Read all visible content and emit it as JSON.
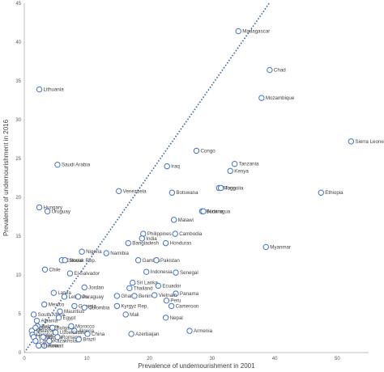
{
  "chart_data": {
    "type": "scatter",
    "xlabel": "Prevalence of undernourishment  in 2001",
    "ylabel": "Prevalence of undernourishment in 2016",
    "xlim": [
      0,
      55
    ],
    "ylim": [
      0,
      45
    ],
    "xticks": [
      0,
      10,
      20,
      30,
      40,
      50
    ],
    "yticks": [
      0,
      5,
      10,
      15,
      20,
      25,
      30,
      35,
      40,
      45
    ],
    "grid": false,
    "reference_line": {
      "style": "dotted",
      "color": "#2e5ba8",
      "slope": 1.15,
      "intercept": 0
    },
    "marker_color": "#4472c4",
    "points": [
      {
        "label": "Madagascar",
        "x": 34.2,
        "y": 41.4
      },
      {
        "label": "Chad",
        "x": 39.2,
        "y": 36.4
      },
      {
        "label": "Lithuania",
        "x": 2.4,
        "y": 33.9
      },
      {
        "label": "Mozambique",
        "x": 37.9,
        "y": 32.8
      },
      {
        "label": "Sierra Leone",
        "x": 52.2,
        "y": 27.2
      },
      {
        "label": "Congo",
        "x": 27.5,
        "y": 26.0
      },
      {
        "label": "Tanzania",
        "x": 33.6,
        "y": 24.3
      },
      {
        "label": "Saudi Arabia",
        "x": 5.3,
        "y": 24.2
      },
      {
        "label": "Iraq",
        "x": 22.8,
        "y": 24.0
      },
      {
        "label": "Kenya",
        "x": 32.9,
        "y": 23.4
      },
      {
        "label": "Mongolia",
        "x": 31.1,
        "y": 21.2
      },
      {
        "label": "Togo",
        "x": 31.4,
        "y": 21.2
      },
      {
        "label": "Venezuela",
        "x": 15.1,
        "y": 20.8
      },
      {
        "label": "Botswana",
        "x": 23.6,
        "y": 20.6
      },
      {
        "label": "Ethiopia",
        "x": 47.4,
        "y": 20.6
      },
      {
        "label": "Hungary",
        "x": 2.4,
        "y": 18.7
      },
      {
        "label": "Burkina",
        "x": 28.4,
        "y": 18.2
      },
      {
        "label": "Nicaragua",
        "x": 28.6,
        "y": 18.2
      },
      {
        "label": "Uruguay",
        "x": 3.7,
        "y": 18.2
      },
      {
        "label": "Malawi",
        "x": 23.9,
        "y": 17.1
      },
      {
        "label": "Philippines",
        "x": 19.0,
        "y": 15.3
      },
      {
        "label": "Cambodia",
        "x": 24.1,
        "y": 15.3
      },
      {
        "label": "India",
        "x": 18.8,
        "y": 14.7
      },
      {
        "label": "Bangladesh",
        "x": 16.6,
        "y": 14.1
      },
      {
        "label": "Honduras",
        "x": 22.6,
        "y": 14.1
      },
      {
        "label": "Myanmar",
        "x": 38.6,
        "y": 13.6
      },
      {
        "label": "Nigeria",
        "x": 9.2,
        "y": 13.0
      },
      {
        "label": "Namibia",
        "x": 13.1,
        "y": 12.8
      },
      {
        "label": "Estonia",
        "x": 6.0,
        "y": 11.9
      },
      {
        "label": "Slovak Rep.",
        "x": 6.5,
        "y": 11.9
      },
      {
        "label": "Gambia",
        "x": 18.2,
        "y": 11.9
      },
      {
        "label": "Pakistan",
        "x": 21.1,
        "y": 11.9
      },
      {
        "label": "Chile",
        "x": 3.3,
        "y": 10.7
      },
      {
        "label": "Indonesia",
        "x": 19.5,
        "y": 10.4
      },
      {
        "label": "El Salvador",
        "x": 7.3,
        "y": 10.2
      },
      {
        "label": "Senegal",
        "x": 24.2,
        "y": 10.3
      },
      {
        "label": "Sri Lanka",
        "x": 17.3,
        "y": 9.0
      },
      {
        "label": "Ecuador",
        "x": 21.4,
        "y": 8.6
      },
      {
        "label": "Jordan",
        "x": 9.6,
        "y": 8.4
      },
      {
        "label": "Thailand",
        "x": 16.8,
        "y": 8.3
      },
      {
        "label": "Latvia",
        "x": 4.7,
        "y": 7.7
      },
      {
        "label": "Ghana",
        "x": 14.8,
        "y": 7.3
      },
      {
        "label": "Benin",
        "x": 17.6,
        "y": 7.3
      },
      {
        "label": "Panama",
        "x": 24.2,
        "y": 7.6
      },
      {
        "label": "Lebanon",
        "x": 6.4,
        "y": 7.2
      },
      {
        "label": "Paraguay",
        "x": 8.6,
        "y": 7.2
      },
      {
        "label": "Vietnam",
        "x": 20.8,
        "y": 7.4
      },
      {
        "label": "Peru",
        "x": 22.7,
        "y": 6.7
      },
      {
        "label": "Mexico",
        "x": 3.2,
        "y": 6.2
      },
      {
        "label": "Georgia",
        "x": 8.0,
        "y": 6.0
      },
      {
        "label": "Kyrgyz Rep.",
        "x": 14.8,
        "y": 6.0
      },
      {
        "label": "Cameroon",
        "x": 23.5,
        "y": 6.0
      },
      {
        "label": "Colombia",
        "x": 9.6,
        "y": 5.8
      },
      {
        "label": "Mauritius",
        "x": 5.7,
        "y": 5.3
      },
      {
        "label": "Mali",
        "x": 16.2,
        "y": 4.9
      },
      {
        "label": "South Africa",
        "x": 1.5,
        "y": 4.9
      },
      {
        "label": "Egypt",
        "x": 5.5,
        "y": 4.5
      },
      {
        "label": "Nepal",
        "x": 22.6,
        "y": 4.5
      },
      {
        "label": "Albania",
        "x": 2.0,
        "y": 4.1
      },
      {
        "label": "Belarus",
        "x": 2.1,
        "y": 3.4
      },
      {
        "label": "Croatia",
        "x": 1.8,
        "y": 3.2
      },
      {
        "label": "Bulgaria",
        "x": 4.5,
        "y": 3.2
      },
      {
        "label": "Morocco",
        "x": 7.5,
        "y": 3.4
      },
      {
        "label": "Malaysia",
        "x": 1.2,
        "y": 2.8
      },
      {
        "label": "Algeria",
        "x": 8.0,
        "y": 2.8
      },
      {
        "label": "Armenia",
        "x": 26.4,
        "y": 2.8
      },
      {
        "label": "Uzbekistan",
        "x": 5.0,
        "y": 2.6
      },
      {
        "label": "Azerbaijan",
        "x": 17.1,
        "y": 2.4
      },
      {
        "label": "Ukraine",
        "x": 1.3,
        "y": 2.3
      },
      {
        "label": "Turkey",
        "x": 1.5,
        "y": 2.0
      },
      {
        "label": "Russia",
        "x": 3.0,
        "y": 2.0
      },
      {
        "label": "Romania",
        "x": 5.3,
        "y": 2.0
      },
      {
        "label": "China",
        "x": 10.1,
        "y": 2.4
      },
      {
        "label": "Latvia",
        "x": 1.8,
        "y": 1.5
      },
      {
        "label": "Kazakhstan",
        "x": 4.0,
        "y": 1.5
      },
      {
        "label": "Brazil",
        "x": 8.7,
        "y": 1.7
      },
      {
        "label": "Kuwait",
        "x": 3.2,
        "y": 0.9
      },
      {
        "label": "Tunisia",
        "x": 2.3,
        "y": 0.9
      }
    ]
  }
}
